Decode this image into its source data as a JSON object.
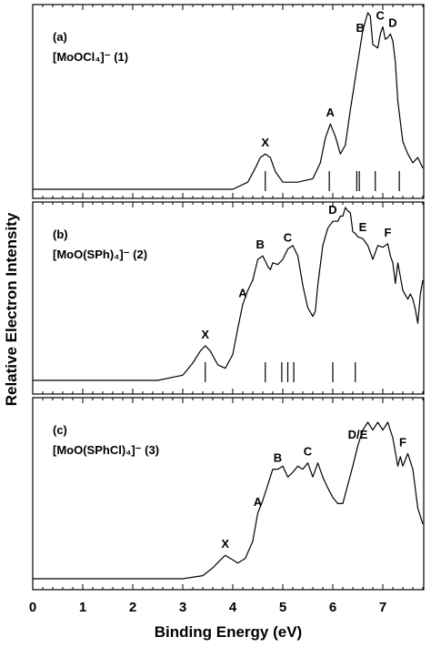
{
  "ylabel": "Relative Electron Intensity",
  "xlabel": "Binding Energy (eV)",
  "x_ticks": [
    "0",
    "1",
    "2",
    "3",
    "4",
    "5",
    "6",
    "7"
  ],
  "colors": {
    "line": "#000000",
    "background": "#ffffff"
  },
  "chart_data": [
    {
      "type": "line",
      "panel": "(a)",
      "compound": "[MoOCl₄]⁻ (1)",
      "xlim": [
        0,
        7.8
      ],
      "series": [
        {
          "x": [
            0.0,
            3.0,
            4.0,
            4.3,
            4.45,
            4.55,
            4.65,
            4.75,
            4.85,
            5.0,
            5.3,
            5.6,
            5.75,
            5.85,
            5.95,
            6.05,
            6.15,
            6.25,
            6.35,
            6.5,
            6.6,
            6.7,
            6.75,
            6.8,
            6.9,
            6.95,
            7.0,
            7.05,
            7.1,
            7.15,
            7.2,
            7.25,
            7.3,
            7.4,
            7.5,
            7.6,
            7.7,
            7.8
          ],
          "y": [
            0.0,
            0.0,
            0.0,
            0.04,
            0.12,
            0.18,
            0.2,
            0.18,
            0.1,
            0.04,
            0.04,
            0.06,
            0.15,
            0.29,
            0.37,
            0.3,
            0.2,
            0.25,
            0.45,
            0.72,
            0.9,
            1.0,
            0.98,
            0.82,
            0.8,
            0.88,
            0.92,
            0.85,
            0.86,
            0.88,
            0.84,
            0.72,
            0.5,
            0.27,
            0.2,
            0.15,
            0.18,
            0.12
          ]
        }
      ],
      "peak_labels": [
        {
          "label": "X",
          "x": 4.65,
          "y": 0.2
        },
        {
          "label": "A",
          "x": 5.95,
          "y": 0.37
        },
        {
          "label": "B",
          "x": 6.55,
          "y": 0.85
        },
        {
          "label": "C",
          "x": 6.95,
          "y": 0.92
        },
        {
          "label": "D",
          "x": 7.2,
          "y": 0.88
        }
      ],
      "ticks": [
        4.65,
        5.93,
        6.48,
        6.53,
        6.85,
        7.33
      ]
    },
    {
      "type": "line",
      "panel": "(b)",
      "compound": "[MoO(SPh)₄]⁻ (2)",
      "xlim": [
        0,
        7.8
      ],
      "series": [
        {
          "x": [
            0.0,
            2.5,
            3.0,
            3.2,
            3.35,
            3.45,
            3.55,
            3.7,
            3.85,
            4.0,
            4.1,
            4.2,
            4.3,
            4.4,
            4.5,
            4.6,
            4.7,
            4.75,
            4.8,
            4.9,
            5.0,
            5.1,
            5.2,
            5.3,
            5.4,
            5.5,
            5.6,
            5.65,
            5.7,
            5.8,
            5.9,
            6.0,
            6.1,
            6.15,
            6.2,
            6.25,
            6.3,
            6.35,
            6.4,
            6.45,
            6.5,
            6.6,
            6.65,
            6.7,
            6.8,
            6.9,
            7.0,
            7.1,
            7.15,
            7.2,
            7.25,
            7.3,
            7.35,
            7.4,
            7.5,
            7.55,
            7.6,
            7.65,
            7.7,
            7.75,
            7.8
          ],
          "y": [
            0.0,
            0.0,
            0.03,
            0.1,
            0.17,
            0.2,
            0.17,
            0.09,
            0.07,
            0.15,
            0.3,
            0.44,
            0.52,
            0.58,
            0.7,
            0.72,
            0.66,
            0.64,
            0.68,
            0.67,
            0.7,
            0.76,
            0.78,
            0.72,
            0.55,
            0.42,
            0.37,
            0.4,
            0.55,
            0.78,
            0.88,
            0.92,
            0.92,
            0.95,
            0.95,
            1.0,
            0.98,
            0.97,
            0.86,
            0.85,
            0.83,
            0.82,
            0.8,
            0.78,
            0.7,
            0.78,
            0.77,
            0.79,
            0.72,
            0.68,
            0.56,
            0.68,
            0.6,
            0.52,
            0.47,
            0.5,
            0.47,
            0.41,
            0.33,
            0.5,
            0.58
          ]
        }
      ],
      "peak_labels": [
        {
          "label": "X",
          "x": 3.45,
          "y": 0.2
        },
        {
          "label": "A",
          "x": 4.2,
          "y": 0.44
        },
        {
          "label": "B",
          "x": 4.55,
          "y": 0.72
        },
        {
          "label": "C",
          "x": 5.1,
          "y": 0.76
        },
        {
          "label": "D",
          "x": 6.0,
          "y": 0.92
        },
        {
          "label": "E",
          "x": 6.6,
          "y": 0.82
        },
        {
          "label": "F",
          "x": 7.1,
          "y": 0.79
        }
      ],
      "ticks": [
        3.45,
        4.65,
        4.98,
        5.1,
        5.22,
        6.0,
        6.45
      ]
    },
    {
      "type": "line",
      "panel": "(c)",
      "compound": "[MoO(SPhCl)₄]⁻ (3)",
      "xlim": [
        0,
        7.8
      ],
      "series": [
        {
          "x": [
            0.0,
            3.0,
            3.4,
            3.6,
            3.75,
            3.85,
            3.95,
            4.1,
            4.25,
            4.4,
            4.5,
            4.6,
            4.7,
            4.8,
            4.9,
            5.0,
            5.1,
            5.2,
            5.3,
            5.4,
            5.5,
            5.6,
            5.7,
            5.8,
            5.9,
            6.0,
            6.1,
            6.2,
            6.3,
            6.4,
            6.5,
            6.6,
            6.7,
            6.8,
            6.9,
            7.0,
            7.1,
            7.2,
            7.3,
            7.35,
            7.4,
            7.5,
            7.6,
            7.7,
            7.8
          ],
          "y": [
            0.0,
            0.0,
            0.02,
            0.07,
            0.12,
            0.15,
            0.13,
            0.1,
            0.13,
            0.24,
            0.42,
            0.5,
            0.6,
            0.7,
            0.7,
            0.72,
            0.65,
            0.68,
            0.72,
            0.7,
            0.74,
            0.65,
            0.74,
            0.65,
            0.58,
            0.52,
            0.48,
            0.48,
            0.6,
            0.72,
            0.85,
            0.95,
            1.0,
            0.95,
            1.0,
            0.95,
            1.0,
            0.9,
            0.72,
            0.78,
            0.72,
            0.8,
            0.7,
            0.45,
            0.35
          ]
        }
      ],
      "peak_labels": [
        {
          "label": "X",
          "x": 3.85,
          "y": 0.15
        },
        {
          "label": "A",
          "x": 4.5,
          "y": 0.42
        },
        {
          "label": "B",
          "x": 4.9,
          "y": 0.7
        },
        {
          "label": "C",
          "x": 5.5,
          "y": 0.74
        },
        {
          "label": "D/E",
          "x": 6.5,
          "y": 0.85
        },
        {
          "label": "F",
          "x": 7.4,
          "y": 0.8
        }
      ],
      "ticks": []
    }
  ]
}
